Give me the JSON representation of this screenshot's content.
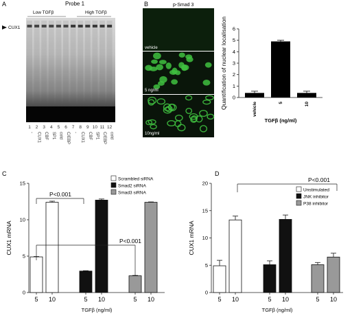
{
  "panel_labels": {
    "a": "A",
    "b": "B",
    "c": "C",
    "d": "D"
  },
  "panel_a": {
    "title": "Probe 1",
    "group_low": "Low TGFβ",
    "group_high": "High TGFβ",
    "band_label": "CUX1",
    "lane_numbers": [
      "1",
      "2",
      "3",
      "4",
      "5",
      "6",
      "7",
      "8",
      "9",
      "10",
      "11",
      "12"
    ],
    "lane_labels": [
      "-",
      "CUX1",
      "CBF",
      "SP1",
      "cold",
      "C/EBP",
      "-",
      "CUX1",
      "CBF",
      "SP1",
      "C/EBP",
      "cold"
    ]
  },
  "panel_b": {
    "title": "p-Smad 3",
    "image_labels": [
      "vehicle",
      "5 ng/ml",
      "10ng/ml"
    ],
    "colors": {
      "stain": "#33b033",
      "background": "#0a1a0a"
    }
  },
  "chart_data": [
    {
      "type": "bar",
      "panel": "B",
      "categories": [
        "vehicle",
        "5",
        "10"
      ],
      "values": [
        0.4,
        4.9,
        0.4
      ],
      "errors": [
        0.15,
        0.1,
        0.15
      ],
      "xlabel": "TGFβ (ng/ml)",
      "ylabel": "Quantification of nuclear localisation",
      "ylim": [
        0,
        6
      ],
      "yticks": [
        0,
        1,
        2,
        3,
        4,
        5,
        6
      ],
      "colors": [
        "#000000",
        "#000000",
        "#000000"
      ]
    },
    {
      "type": "bar",
      "panel": "C",
      "ylabel": "CUX1 mRNA",
      "xlabel": "TGFβ (ng/ml)",
      "ylim": [
        0,
        15
      ],
      "yticks": [
        0,
        5,
        10,
        15
      ],
      "series": [
        {
          "name": "Scrambled siRNA",
          "color": "#ffffff",
          "categories": [
            "5",
            "10"
          ],
          "values": [
            4.9,
            12.4
          ],
          "errors": [
            0.05,
            0.15
          ]
        },
        {
          "name": "Smad2 siRNA",
          "color": "#111111",
          "categories": [
            "5",
            "10"
          ],
          "values": [
            2.95,
            12.7
          ],
          "errors": [
            0.05,
            0.15
          ]
        },
        {
          "name": "Smad3 siRNA",
          "color": "#999999",
          "categories": [
            "5",
            "10"
          ],
          "values": [
            2.3,
            12.4
          ],
          "errors": [
            0.05,
            0.05
          ]
        }
      ],
      "annotations": [
        "P<0.001",
        "P<0.001"
      ]
    },
    {
      "type": "bar",
      "panel": "D",
      "ylabel": "CUX1 mRNA",
      "xlabel": "TGFβ (ng/ml)",
      "ylim": [
        0,
        20
      ],
      "yticks": [
        0,
        5,
        10,
        15,
        20
      ],
      "series": [
        {
          "name": "Unstimulated",
          "color": "#ffffff",
          "categories": [
            "5",
            "10"
          ],
          "values": [
            4.9,
            13.3
          ],
          "errors": [
            1.0,
            0.7
          ]
        },
        {
          "name": "JNK inhibitor",
          "color": "#111111",
          "categories": [
            "5",
            "10"
          ],
          "values": [
            5.1,
            13.4
          ],
          "errors": [
            0.7,
            0.8
          ]
        },
        {
          "name": "P38 inhibitor",
          "color": "#999999",
          "categories": [
            "5",
            "10"
          ],
          "values": [
            5.1,
            6.5
          ],
          "errors": [
            0.4,
            0.7
          ]
        }
      ],
      "annotations": [
        "P<0.001"
      ]
    }
  ]
}
